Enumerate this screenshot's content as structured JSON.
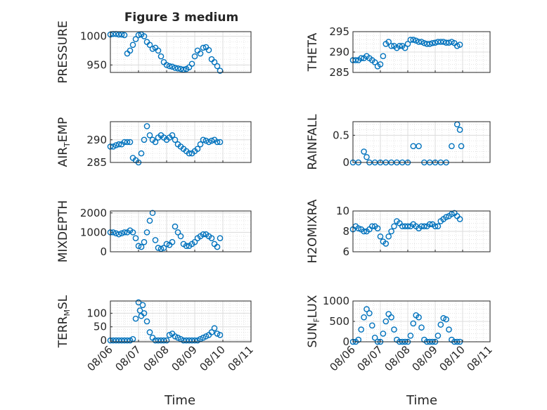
{
  "title": "Figure 3 medium",
  "xlabel": "Time",
  "xticks": [
    "08/06",
    "08/07",
    "08/08",
    "08/09",
    "08/10",
    "08/11"
  ],
  "marker_color": "#0072BD",
  "chart_data": [
    {
      "type": "scatter",
      "ylabel": "PRESSURE",
      "ylim": [
        937,
        1008
      ],
      "yticks": [
        950,
        1000
      ],
      "x": [
        0,
        0.1,
        0.2,
        0.3,
        0.4,
        0.5,
        0.6,
        0.7,
        0.8,
        0.9,
        1,
        1.1,
        1.2,
        1.3,
        1.4,
        1.5,
        1.6,
        1.7,
        1.8,
        1.9,
        2,
        2.1,
        2.2,
        2.3,
        2.4,
        2.5,
        2.6,
        2.7,
        2.8,
        2.9,
        3,
        3.1,
        3.2,
        3.3,
        3.4,
        3.5,
        3.6,
        3.7,
        3.8,
        3.9
      ],
      "y": [
        1003,
        1004,
        1004,
        1003,
        1003,
        1002,
        970,
        975,
        985,
        995,
        1002,
        1003,
        1000,
        990,
        985,
        978,
        980,
        975,
        965,
        955,
        950,
        948,
        947,
        945,
        944,
        943,
        942,
        943,
        946,
        952,
        965,
        975,
        970,
        980,
        981,
        976,
        960,
        955,
        948,
        940
      ]
    },
    {
      "type": "scatter",
      "ylabel": "THETA",
      "ylim": [
        285,
        295
      ],
      "yticks": [
        285,
        290,
        295
      ],
      "x": [
        0,
        0.1,
        0.2,
        0.3,
        0.4,
        0.5,
        0.6,
        0.7,
        0.8,
        0.9,
        1,
        1.1,
        1.2,
        1.3,
        1.4,
        1.5,
        1.6,
        1.7,
        1.8,
        1.9,
        2,
        2.1,
        2.2,
        2.3,
        2.4,
        2.5,
        2.6,
        2.7,
        2.8,
        2.9,
        3,
        3.1,
        3.2,
        3.3,
        3.4,
        3.5,
        3.6,
        3.7,
        3.8,
        3.9
      ],
      "y": [
        288,
        288,
        288,
        288.5,
        288.5,
        289,
        288.5,
        288,
        287.5,
        286.5,
        287,
        289,
        292,
        292.5,
        291.5,
        291.5,
        291,
        291.5,
        291.5,
        291,
        292,
        293,
        293,
        292.8,
        292.5,
        292.5,
        292.2,
        292,
        292,
        292.2,
        292.3,
        292.5,
        292.5,
        292.5,
        292.3,
        292.3,
        292.5,
        292.2,
        291.5,
        291.8
      ]
    },
    {
      "type": "scatter",
      "ylabel": "AIR_TEMP",
      "ylim": [
        285,
        294
      ],
      "yticks": [
        285,
        290
      ],
      "x": [
        0,
        0.1,
        0.2,
        0.3,
        0.4,
        0.5,
        0.6,
        0.7,
        0.8,
        0.9,
        1,
        1.1,
        1.2,
        1.3,
        1.4,
        1.5,
        1.6,
        1.7,
        1.8,
        1.9,
        2,
        2.1,
        2.2,
        2.3,
        2.4,
        2.5,
        2.6,
        2.7,
        2.8,
        2.9,
        3,
        3.1,
        3.2,
        3.3,
        3.4,
        3.5,
        3.6,
        3.7,
        3.8,
        3.9
      ],
      "y": [
        288.5,
        288.5,
        288.8,
        289,
        289,
        289.5,
        289.5,
        289.5,
        286,
        285.5,
        285,
        287,
        290,
        293,
        291,
        290,
        289.5,
        290.5,
        291,
        290.5,
        290,
        290.5,
        291,
        290,
        289,
        288.5,
        288,
        287.5,
        287,
        287,
        287.5,
        288,
        289,
        290,
        289.8,
        289.5,
        289.8,
        290,
        289.5,
        289.5
      ]
    },
    {
      "type": "scatter",
      "ylabel": "RAINFALL",
      "ylim": [
        0,
        0.75
      ],
      "yticks": [
        0,
        0.5
      ],
      "x": [
        0,
        0.2,
        0.4,
        0.5,
        0.6,
        0.8,
        1,
        1.2,
        1.4,
        1.6,
        1.8,
        2,
        2.2,
        2.4,
        2.6,
        2.8,
        3,
        3.2,
        3.4,
        3.6,
        3.8,
        3.9,
        3.95
      ],
      "y": [
        0,
        0,
        0.2,
        0.1,
        0,
        0,
        0,
        0,
        0,
        0,
        0,
        0,
        0.3,
        0.3,
        0,
        0,
        0,
        0,
        0,
        0.3,
        0.7,
        0.6,
        0.3
      ]
    },
    {
      "type": "scatter",
      "ylabel": "MIXDEPTH",
      "ylim": [
        0,
        2100
      ],
      "yticks": [
        0,
        1000,
        2000
      ],
      "x": [
        0,
        0.1,
        0.2,
        0.3,
        0.4,
        0.5,
        0.6,
        0.7,
        0.8,
        0.9,
        1,
        1.1,
        1.2,
        1.3,
        1.4,
        1.5,
        1.6,
        1.7,
        1.8,
        1.9,
        2,
        2.1,
        2.2,
        2.3,
        2.4,
        2.5,
        2.6,
        2.7,
        2.8,
        2.9,
        3,
        3.1,
        3.2,
        3.3,
        3.4,
        3.5,
        3.6,
        3.7,
        3.8,
        3.9
      ],
      "y": [
        1000,
        1000,
        950,
        900,
        950,
        1000,
        1000,
        1100,
        1000,
        700,
        300,
        250,
        500,
        1000,
        1600,
        2000,
        600,
        200,
        150,
        200,
        400,
        350,
        500,
        1300,
        1000,
        800,
        400,
        300,
        300,
        400,
        500,
        700,
        800,
        900,
        900,
        800,
        700,
        400,
        250,
        700
      ]
    },
    {
      "type": "scatter",
      "ylabel": "H2OMIXRA",
      "ylim": [
        6,
        10
      ],
      "yticks": [
        6,
        8,
        10
      ],
      "x": [
        0,
        0.1,
        0.2,
        0.3,
        0.4,
        0.5,
        0.6,
        0.7,
        0.8,
        0.9,
        1,
        1.1,
        1.2,
        1.3,
        1.4,
        1.5,
        1.6,
        1.7,
        1.8,
        1.9,
        2,
        2.1,
        2.2,
        2.3,
        2.4,
        2.5,
        2.6,
        2.7,
        2.8,
        2.9,
        3,
        3.1,
        3.2,
        3.3,
        3.4,
        3.5,
        3.6,
        3.7,
        3.8,
        3.9
      ],
      "y": [
        8.2,
        8.5,
        8.3,
        8.2,
        8,
        8,
        8.2,
        8.5,
        8.5,
        8.3,
        7.5,
        7,
        6.8,
        7.5,
        8,
        8.5,
        9,
        8.8,
        8.5,
        8.5,
        8.5,
        8.5,
        8.7,
        8.5,
        8.3,
        8.5,
        8.5,
        8.5,
        8.7,
        8.7,
        8.5,
        8.5,
        9,
        9.2,
        9.4,
        9.5,
        9.7,
        9.8,
        9.5,
        9.2
      ]
    },
    {
      "type": "scatter",
      "ylabel": "TERR_MSL",
      "ylim": [
        -5,
        145
      ],
      "yticks": [
        0,
        50,
        100
      ],
      "x": [
        0,
        0.1,
        0.2,
        0.3,
        0.4,
        0.5,
        0.6,
        0.7,
        0.8,
        0.9,
        1,
        1.05,
        1.1,
        1.15,
        1.2,
        1.3,
        1.4,
        1.5,
        1.6,
        1.7,
        1.8,
        1.9,
        2,
        2.1,
        2.2,
        2.3,
        2.4,
        2.5,
        2.6,
        2.7,
        2.8,
        2.9,
        3,
        3.1,
        3.2,
        3.3,
        3.4,
        3.5,
        3.6,
        3.7,
        3.8,
        3.9
      ],
      "y": [
        0,
        0,
        0,
        0,
        0,
        0,
        0,
        0,
        5,
        80,
        140,
        110,
        90,
        130,
        100,
        70,
        30,
        10,
        0,
        0,
        0,
        0,
        0,
        20,
        25,
        15,
        10,
        5,
        0,
        0,
        0,
        0,
        0,
        0,
        5,
        10,
        15,
        20,
        30,
        45,
        25,
        20
      ]
    },
    {
      "type": "scatter",
      "ylabel": "SUN_FLUX",
      "ylim": [
        0,
        1000
      ],
      "yticks": [
        0,
        500,
        1000
      ],
      "x": [
        0,
        0.1,
        0.2,
        0.3,
        0.4,
        0.5,
        0.6,
        0.7,
        0.8,
        0.9,
        1,
        1.1,
        1.2,
        1.3,
        1.4,
        1.5,
        1.6,
        1.7,
        1.8,
        1.9,
        2,
        2.1,
        2.2,
        2.3,
        2.4,
        2.5,
        2.6,
        2.7,
        2.8,
        2.9,
        3,
        3.1,
        3.2,
        3.3,
        3.4,
        3.5,
        3.6,
        3.7,
        3.8,
        3.9
      ],
      "y": [
        0,
        0,
        50,
        300,
        600,
        800,
        700,
        400,
        100,
        0,
        0,
        200,
        500,
        680,
        600,
        300,
        50,
        0,
        0,
        0,
        0,
        150,
        450,
        650,
        600,
        350,
        50,
        0,
        0,
        0,
        0,
        150,
        420,
        580,
        550,
        300,
        50,
        0,
        0,
        0
      ]
    }
  ]
}
